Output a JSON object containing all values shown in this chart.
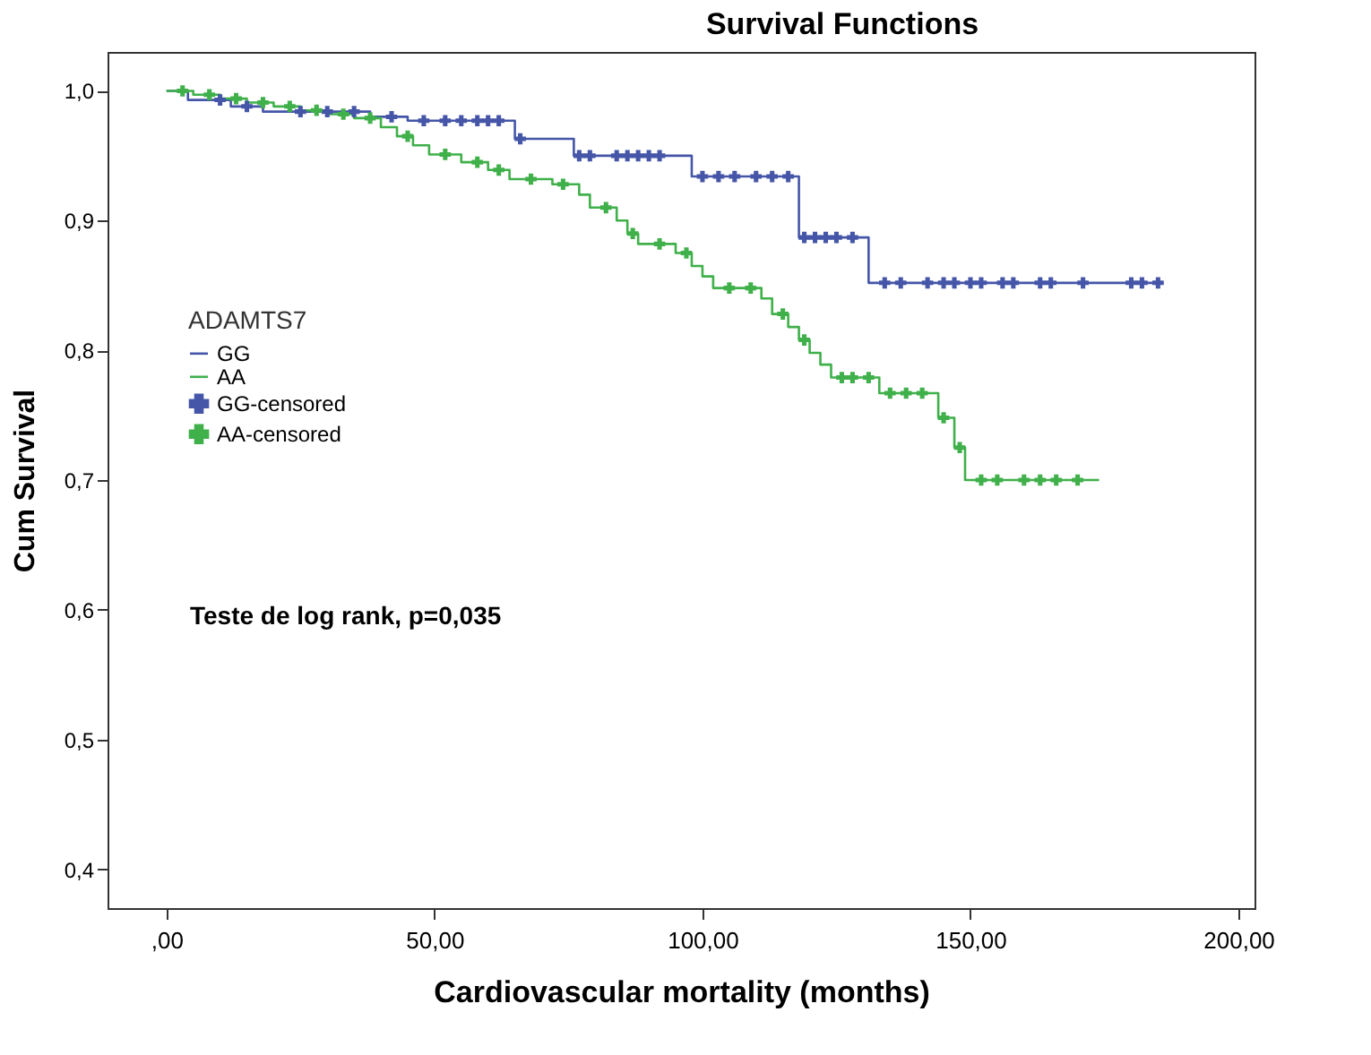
{
  "chart_data": {
    "type": "step",
    "title": "Survival Functions",
    "xlabel": "Cardiovascular mortality (months)",
    "ylabel": "Cum Survival",
    "legend_title": "ADAMTS7",
    "legend": "left",
    "grid": false,
    "xlim": [
      -11,
      203
    ],
    "xticks": [
      {
        "value": 0,
        "label": ",00"
      },
      {
        "value": 50,
        "label": "50,00"
      },
      {
        "value": 100,
        "label": "100,00"
      },
      {
        "value": 150,
        "label": "150,00"
      },
      {
        "value": 200,
        "label": "200,00"
      }
    ],
    "ylim": [
      0.37,
      1.03
    ],
    "yticks": [
      {
        "value": 0.4,
        "label": "0,4"
      },
      {
        "value": 0.5,
        "label": "0,5"
      },
      {
        "value": 0.6,
        "label": "0,6"
      },
      {
        "value": 0.7,
        "label": "0,7"
      },
      {
        "value": 0.8,
        "label": "0,8"
      },
      {
        "value": 0.9,
        "label": "0,9"
      },
      {
        "value": 1.0,
        "label": "1,0"
      }
    ],
    "annotations": [
      "Teste de log rank, p=0,035"
    ],
    "series": [
      {
        "name": "GG",
        "type": "step",
        "marker": "none",
        "color": "#4556a8",
        "x": [
          0,
          4,
          12,
          18,
          38,
          45,
          65,
          76,
          98,
          118,
          131,
          186
        ],
        "values": [
          1.0,
          0.993,
          0.988,
          0.984,
          0.98,
          0.977,
          0.963,
          0.95,
          0.934,
          0.887,
          0.852,
          0.852
        ]
      },
      {
        "name": "AA",
        "type": "step",
        "marker": "none",
        "color": "#3fb04a",
        "x": [
          0,
          5,
          10,
          15,
          20,
          25,
          30,
          35,
          40,
          43,
          46,
          49,
          55,
          60,
          64,
          72,
          77,
          79,
          84,
          86,
          88,
          95,
          98,
          100,
          102,
          111,
          113,
          116,
          118,
          120,
          122,
          124,
          133,
          144,
          147,
          149,
          174
        ],
        "values": [
          1.0,
          0.997,
          0.994,
          0.991,
          0.988,
          0.985,
          0.982,
          0.979,
          0.972,
          0.965,
          0.958,
          0.951,
          0.945,
          0.939,
          0.932,
          0.928,
          0.92,
          0.91,
          0.9,
          0.89,
          0.882,
          0.875,
          0.865,
          0.857,
          0.848,
          0.84,
          0.828,
          0.818,
          0.808,
          0.798,
          0.789,
          0.779,
          0.767,
          0.748,
          0.725,
          0.7,
          0.7
        ]
      },
      {
        "name": "GG-censored",
        "type": "scatter",
        "marker": "cross",
        "color": "#4556a8",
        "x": [
          10,
          15,
          25,
          30,
          35,
          42,
          48,
          52,
          55,
          58,
          60,
          62,
          66,
          77,
          79,
          84,
          86,
          88,
          90,
          92,
          100,
          103,
          106,
          110,
          113,
          116,
          119,
          121,
          123,
          125,
          128,
          134,
          137,
          142,
          145,
          147,
          150,
          152,
          156,
          158,
          163,
          165,
          171,
          180,
          182,
          185
        ],
        "values": [
          0.993,
          0.988,
          0.984,
          0.984,
          0.984,
          0.98,
          0.977,
          0.977,
          0.977,
          0.977,
          0.977,
          0.977,
          0.963,
          0.95,
          0.95,
          0.95,
          0.95,
          0.95,
          0.95,
          0.95,
          0.934,
          0.934,
          0.934,
          0.934,
          0.934,
          0.934,
          0.887,
          0.887,
          0.887,
          0.887,
          0.887,
          0.852,
          0.852,
          0.852,
          0.852,
          0.852,
          0.852,
          0.852,
          0.852,
          0.852,
          0.852,
          0.852,
          0.852,
          0.852,
          0.852,
          0.852
        ]
      },
      {
        "name": "AA-censored",
        "type": "scatter",
        "marker": "cross",
        "color": "#3fb04a",
        "x": [
          3,
          8,
          13,
          18,
          23,
          28,
          33,
          38,
          45,
          52,
          58,
          62,
          68,
          74,
          82,
          87,
          92,
          97,
          105,
          109,
          115,
          119,
          126,
          128,
          131,
          135,
          138,
          141,
          145,
          148,
          152,
          155,
          160,
          163,
          166,
          170
        ],
        "values": [
          1.0,
          0.997,
          0.994,
          0.991,
          0.988,
          0.985,
          0.982,
          0.979,
          0.965,
          0.951,
          0.945,
          0.939,
          0.932,
          0.928,
          0.91,
          0.89,
          0.882,
          0.875,
          0.848,
          0.848,
          0.828,
          0.808,
          0.779,
          0.779,
          0.779,
          0.767,
          0.767,
          0.767,
          0.748,
          0.725,
          0.7,
          0.7,
          0.7,
          0.7,
          0.7,
          0.7
        ]
      }
    ]
  }
}
